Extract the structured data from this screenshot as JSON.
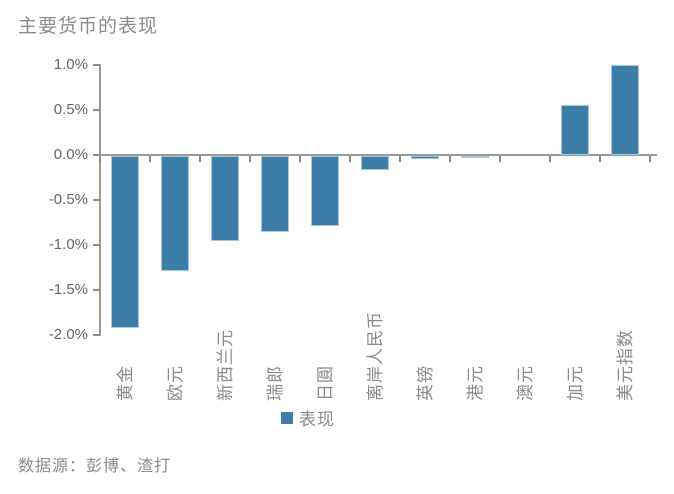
{
  "title": "主要货币的表现",
  "legend": {
    "label": "表现"
  },
  "source": "数据源：彭博、渣打",
  "colors": {
    "bar": "#3c7ea8",
    "bar_border": "#a9c7db",
    "axis": "#9a9a9a",
    "tick": "#8a8a8a",
    "title_text": "#8c8c8c",
    "y_label_text": "#666666",
    "category_text": "#8a8a8a"
  },
  "chart_data": {
    "type": "bar",
    "title": "主要货币的表现",
    "series_name": "表现",
    "categories": [
      "黄金",
      "欧元",
      "新西兰元",
      "瑞郎",
      "日圓",
      "离岸人民币",
      "英镑",
      "港元",
      "澳元",
      "加元",
      "美元指数"
    ],
    "values": [
      -1.91,
      -1.28,
      -0.94,
      -0.84,
      -0.78,
      -0.16,
      -0.03,
      -0.02,
      0.0,
      0.55,
      1.0
    ],
    "value_unit": "%",
    "ylim": [
      -2.0,
      1.0
    ],
    "ytick_step": 0.5,
    "ytick_labels": [
      "1.0%",
      "0.5%",
      "0.0%",
      "-0.5%",
      "-1.0%",
      "-1.5%",
      "-2.0%"
    ],
    "grid": false,
    "legend_position": "bottom-center",
    "xlabel": "",
    "ylabel": ""
  }
}
